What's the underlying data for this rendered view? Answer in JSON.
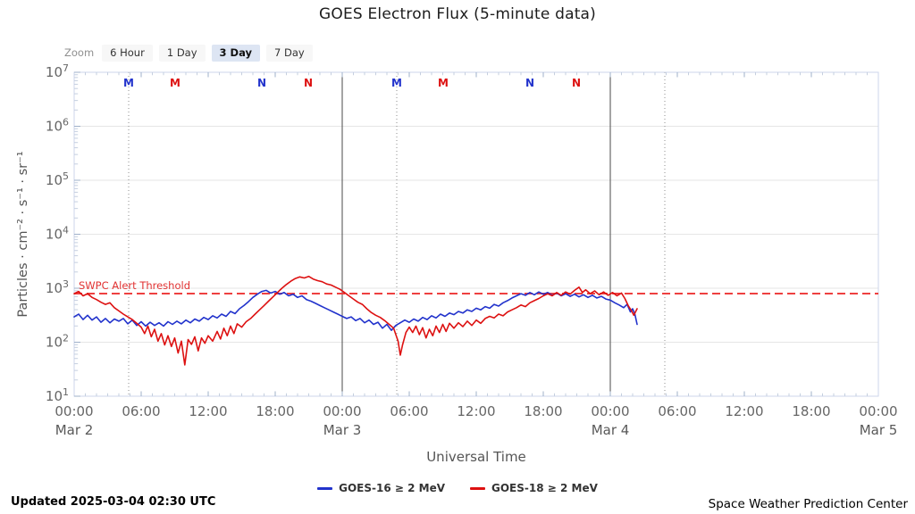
{
  "header": {
    "title": "GOES Electron Flux (5-minute data)"
  },
  "toolbar": {
    "zoom_label": "Zoom",
    "buttons": [
      {
        "label": "6 Hour",
        "selected": false
      },
      {
        "label": "1 Day",
        "selected": false
      },
      {
        "label": "3 Day",
        "selected": true
      },
      {
        "label": "7 Day",
        "selected": false
      }
    ]
  },
  "chart_data": {
    "type": "line",
    "title": "GOES Electron Flux (5-minute data)",
    "xlabel": "Universal Time",
    "ylabel": "Particles · cm⁻² · s⁻¹ · sr⁻¹",
    "x_range_hours": [
      0,
      72
    ],
    "x_ticks": [
      {
        "time": "00:00",
        "date": "Mar 2"
      },
      {
        "time": "06:00"
      },
      {
        "time": "12:00"
      },
      {
        "time": "18:00"
      },
      {
        "time": "00:00",
        "date": "Mar 3"
      },
      {
        "time": "06:00"
      },
      {
        "time": "12:00"
      },
      {
        "time": "18:00"
      },
      {
        "time": "00:00",
        "date": "Mar 4"
      },
      {
        "time": "06:00"
      },
      {
        "time": "12:00"
      },
      {
        "time": "18:00"
      },
      {
        "time": "00:00",
        "date": "Mar 5"
      }
    ],
    "y_axis": {
      "scale": "log10",
      "min_exponent": 1,
      "max_exponent": 7,
      "exponents": [
        7,
        6,
        5,
        4,
        3,
        2,
        1
      ]
    },
    "grid": "horizontal-decades",
    "threshold": {
      "label": "SWPC Alert Threshold",
      "log10_flux": 2.9,
      "color": "#ee4040"
    },
    "day_separators_hours": [
      24,
      48
    ],
    "satellite_midnight_dotted_hours": [
      4.88,
      28.88,
      52.88
    ],
    "markers": [
      {
        "label": "M",
        "hour": 4.88,
        "satellite": "GOES-16"
      },
      {
        "label": "M",
        "hour": 9.04,
        "satellite": "GOES-18"
      },
      {
        "label": "N",
        "hour": 16.8,
        "satellite": "GOES-16"
      },
      {
        "label": "N",
        "hour": 20.96,
        "satellite": "GOES-18"
      },
      {
        "label": "M",
        "hour": 28.88,
        "satellite": "GOES-16"
      },
      {
        "label": "M",
        "hour": 33.04,
        "satellite": "GOES-18"
      },
      {
        "label": "N",
        "hour": 40.8,
        "satellite": "GOES-16"
      },
      {
        "label": "N",
        "hour": 44.96,
        "satellite": "GOES-18"
      }
    ],
    "series": [
      {
        "name": "GOES-16 ≥ 2 MeV",
        "satellite": "GOES-16",
        "color": "#2233cc",
        "points_hour_log10flux": [
          [
            0,
            2.47
          ],
          [
            0.4,
            2.52
          ],
          [
            0.8,
            2.42
          ],
          [
            1.2,
            2.5
          ],
          [
            1.6,
            2.41
          ],
          [
            2,
            2.47
          ],
          [
            2.4,
            2.37
          ],
          [
            2.8,
            2.44
          ],
          [
            3.2,
            2.36
          ],
          [
            3.6,
            2.43
          ],
          [
            4,
            2.39
          ],
          [
            4.4,
            2.44
          ],
          [
            4.8,
            2.34
          ],
          [
            5.2,
            2.41
          ],
          [
            5.6,
            2.31
          ],
          [
            6,
            2.38
          ],
          [
            6.4,
            2.3
          ],
          [
            6.8,
            2.37
          ],
          [
            7.2,
            2.31
          ],
          [
            7.6,
            2.36
          ],
          [
            8,
            2.3
          ],
          [
            8.4,
            2.38
          ],
          [
            8.8,
            2.33
          ],
          [
            9.2,
            2.39
          ],
          [
            9.6,
            2.34
          ],
          [
            10,
            2.41
          ],
          [
            10.4,
            2.36
          ],
          [
            10.8,
            2.43
          ],
          [
            11.2,
            2.39
          ],
          [
            11.6,
            2.46
          ],
          [
            12,
            2.42
          ],
          [
            12.4,
            2.49
          ],
          [
            12.8,
            2.45
          ],
          [
            13.2,
            2.52
          ],
          [
            13.6,
            2.48
          ],
          [
            14,
            2.57
          ],
          [
            14.4,
            2.53
          ],
          [
            14.8,
            2.62
          ],
          [
            15.2,
            2.68
          ],
          [
            15.6,
            2.75
          ],
          [
            16,
            2.83
          ],
          [
            16.4,
            2.89
          ],
          [
            16.8,
            2.94
          ],
          [
            17.2,
            2.96
          ],
          [
            17.6,
            2.91
          ],
          [
            18,
            2.94
          ],
          [
            18.4,
            2.89
          ],
          [
            18.8,
            2.92
          ],
          [
            19.2,
            2.86
          ],
          [
            19.6,
            2.89
          ],
          [
            20,
            2.83
          ],
          [
            20.4,
            2.86
          ],
          [
            20.8,
            2.79
          ],
          [
            21.2,
            2.76
          ],
          [
            21.6,
            2.72
          ],
          [
            22,
            2.68
          ],
          [
            22.4,
            2.64
          ],
          [
            22.8,
            2.6
          ],
          [
            23.2,
            2.56
          ],
          [
            23.6,
            2.52
          ],
          [
            24,
            2.48
          ],
          [
            24.4,
            2.44
          ],
          [
            24.8,
            2.47
          ],
          [
            25.2,
            2.4
          ],
          [
            25.6,
            2.44
          ],
          [
            26,
            2.36
          ],
          [
            26.4,
            2.41
          ],
          [
            26.8,
            2.33
          ],
          [
            27.2,
            2.37
          ],
          [
            27.6,
            2.26
          ],
          [
            28,
            2.33
          ],
          [
            28.4,
            2.22
          ],
          [
            28.8,
            2.31
          ],
          [
            29.2,
            2.36
          ],
          [
            29.6,
            2.41
          ],
          [
            30,
            2.37
          ],
          [
            30.4,
            2.43
          ],
          [
            30.8,
            2.39
          ],
          [
            31.2,
            2.46
          ],
          [
            31.6,
            2.42
          ],
          [
            32,
            2.49
          ],
          [
            32.4,
            2.45
          ],
          [
            32.8,
            2.52
          ],
          [
            33.2,
            2.48
          ],
          [
            33.6,
            2.54
          ],
          [
            34,
            2.51
          ],
          [
            34.4,
            2.57
          ],
          [
            34.8,
            2.54
          ],
          [
            35.2,
            2.6
          ],
          [
            35.6,
            2.57
          ],
          [
            36,
            2.63
          ],
          [
            36.4,
            2.6
          ],
          [
            36.8,
            2.66
          ],
          [
            37.2,
            2.63
          ],
          [
            37.6,
            2.7
          ],
          [
            38,
            2.67
          ],
          [
            38.4,
            2.73
          ],
          [
            38.8,
            2.77
          ],
          [
            39.2,
            2.82
          ],
          [
            39.6,
            2.86
          ],
          [
            40,
            2.9
          ],
          [
            40.4,
            2.87
          ],
          [
            40.8,
            2.92
          ],
          [
            41.2,
            2.88
          ],
          [
            41.6,
            2.93
          ],
          [
            42,
            2.89
          ],
          [
            42.4,
            2.92
          ],
          [
            42.8,
            2.87
          ],
          [
            43.2,
            2.91
          ],
          [
            43.6,
            2.86
          ],
          [
            44,
            2.9
          ],
          [
            44.4,
            2.85
          ],
          [
            44.8,
            2.89
          ],
          [
            45.2,
            2.84
          ],
          [
            45.6,
            2.88
          ],
          [
            46,
            2.83
          ],
          [
            46.4,
            2.87
          ],
          [
            46.8,
            2.82
          ],
          [
            47.2,
            2.85
          ],
          [
            47.6,
            2.8
          ],
          [
            48,
            2.78
          ],
          [
            48.4,
            2.73
          ],
          [
            48.8,
            2.69
          ],
          [
            49.2,
            2.64
          ],
          [
            49.5,
            2.7
          ],
          [
            49.8,
            2.56
          ],
          [
            50,
            2.62
          ],
          [
            50.2,
            2.52
          ],
          [
            50.4,
            2.33
          ]
        ]
      },
      {
        "name": "GOES-18 ≥ 2 MeV",
        "satellite": "GOES-18",
        "color": "#dd1111",
        "points_hour_log10flux": [
          [
            0,
            2.9
          ],
          [
            0.4,
            2.94
          ],
          [
            0.8,
            2.86
          ],
          [
            1.2,
            2.9
          ],
          [
            1.6,
            2.83
          ],
          [
            2,
            2.79
          ],
          [
            2.4,
            2.74
          ],
          [
            2.8,
            2.7
          ],
          [
            3.2,
            2.73
          ],
          [
            3.6,
            2.64
          ],
          [
            4,
            2.58
          ],
          [
            4.4,
            2.52
          ],
          [
            4.8,
            2.47
          ],
          [
            5.2,
            2.42
          ],
          [
            5.6,
            2.35
          ],
          [
            6,
            2.28
          ],
          [
            6.3,
            2.16
          ],
          [
            6.6,
            2.3
          ],
          [
            6.9,
            2.1
          ],
          [
            7.2,
            2.24
          ],
          [
            7.5,
            2.02
          ],
          [
            7.8,
            2.16
          ],
          [
            8.1,
            1.95
          ],
          [
            8.4,
            2.12
          ],
          [
            8.7,
            1.92
          ],
          [
            9,
            2.08
          ],
          [
            9.3,
            1.8
          ],
          [
            9.6,
            2.02
          ],
          [
            9.9,
            1.58
          ],
          [
            10.2,
            2.05
          ],
          [
            10.5,
            1.96
          ],
          [
            10.8,
            2.1
          ],
          [
            11.1,
            1.84
          ],
          [
            11.4,
            2.08
          ],
          [
            11.7,
            1.98
          ],
          [
            12,
            2.12
          ],
          [
            12.4,
            2.02
          ],
          [
            12.8,
            2.2
          ],
          [
            13.1,
            2.06
          ],
          [
            13.4,
            2.26
          ],
          [
            13.7,
            2.12
          ],
          [
            14,
            2.3
          ],
          [
            14.3,
            2.16
          ],
          [
            14.6,
            2.34
          ],
          [
            15,
            2.28
          ],
          [
            15.4,
            2.38
          ],
          [
            15.8,
            2.44
          ],
          [
            16.2,
            2.52
          ],
          [
            16.6,
            2.6
          ],
          [
            17,
            2.68
          ],
          [
            17.4,
            2.76
          ],
          [
            17.8,
            2.84
          ],
          [
            18.2,
            2.92
          ],
          [
            18.6,
            3.0
          ],
          [
            19,
            3.07
          ],
          [
            19.4,
            3.13
          ],
          [
            19.8,
            3.18
          ],
          [
            20.2,
            3.21
          ],
          [
            20.6,
            3.19
          ],
          [
            21,
            3.22
          ],
          [
            21.4,
            3.17
          ],
          [
            21.8,
            3.14
          ],
          [
            22.2,
            3.12
          ],
          [
            22.6,
            3.08
          ],
          [
            23,
            3.06
          ],
          [
            23.4,
            3.02
          ],
          [
            23.8,
            2.98
          ],
          [
            24.2,
            2.92
          ],
          [
            24.6,
            2.86
          ],
          [
            25,
            2.8
          ],
          [
            25.4,
            2.74
          ],
          [
            25.8,
            2.7
          ],
          [
            26.2,
            2.62
          ],
          [
            26.6,
            2.55
          ],
          [
            27,
            2.5
          ],
          [
            27.4,
            2.46
          ],
          [
            27.8,
            2.4
          ],
          [
            28.2,
            2.33
          ],
          [
            28.6,
            2.26
          ],
          [
            29,
            2.02
          ],
          [
            29.2,
            1.76
          ],
          [
            29.4,
            1.95
          ],
          [
            29.7,
            2.18
          ],
          [
            30,
            2.28
          ],
          [
            30.3,
            2.18
          ],
          [
            30.6,
            2.3
          ],
          [
            30.9,
            2.14
          ],
          [
            31.2,
            2.27
          ],
          [
            31.5,
            2.08
          ],
          [
            31.8,
            2.24
          ],
          [
            32.1,
            2.12
          ],
          [
            32.4,
            2.3
          ],
          [
            32.7,
            2.18
          ],
          [
            33,
            2.33
          ],
          [
            33.3,
            2.2
          ],
          [
            33.6,
            2.35
          ],
          [
            34,
            2.26
          ],
          [
            34.4,
            2.36
          ],
          [
            34.8,
            2.29
          ],
          [
            35.2,
            2.39
          ],
          [
            35.6,
            2.31
          ],
          [
            36,
            2.41
          ],
          [
            36.4,
            2.35
          ],
          [
            36.8,
            2.44
          ],
          [
            37.2,
            2.48
          ],
          [
            37.6,
            2.45
          ],
          [
            38,
            2.52
          ],
          [
            38.4,
            2.49
          ],
          [
            38.8,
            2.56
          ],
          [
            39.2,
            2.6
          ],
          [
            39.6,
            2.64
          ],
          [
            40,
            2.69
          ],
          [
            40.4,
            2.66
          ],
          [
            40.8,
            2.73
          ],
          [
            41.2,
            2.77
          ],
          [
            41.6,
            2.81
          ],
          [
            42,
            2.86
          ],
          [
            42.4,
            2.9
          ],
          [
            42.8,
            2.86
          ],
          [
            43.2,
            2.92
          ],
          [
            43.6,
            2.87
          ],
          [
            44,
            2.93
          ],
          [
            44.4,
            2.89
          ],
          [
            44.8,
            2.96
          ],
          [
            45.2,
            3.02
          ],
          [
            45.5,
            2.92
          ],
          [
            45.8,
            2.97
          ],
          [
            46.2,
            2.9
          ],
          [
            46.6,
            2.95
          ],
          [
            47,
            2.88
          ],
          [
            47.4,
            2.93
          ],
          [
            47.8,
            2.87
          ],
          [
            48.2,
            2.92
          ],
          [
            48.6,
            2.86
          ],
          [
            49,
            2.91
          ],
          [
            49.3,
            2.81
          ],
          [
            49.6,
            2.68
          ],
          [
            49.9,
            2.58
          ],
          [
            50.1,
            2.5
          ],
          [
            50.4,
            2.62
          ]
        ]
      }
    ]
  },
  "legend": {
    "items": [
      {
        "label": "GOES-16 ≥ 2 MeV",
        "color": "#2233cc"
      },
      {
        "label": "GOES-18 ≥ 2 MeV",
        "color": "#dd1111"
      }
    ]
  },
  "footer": {
    "updated": "Updated 2025-03-04 02:30 UTC",
    "source": "Space Weather Prediction Center"
  },
  "colors": {
    "goes16_blue": "#2233cc",
    "goes18_red": "#dd1111",
    "threshold_red": "#ee4040",
    "plot_border": "#ccd6eb",
    "gridline": "#e6e6e6",
    "day_separator": "#4a4a4a",
    "midnight_dotted": "#8c8c8c",
    "axis_label_gray": "#666666"
  }
}
